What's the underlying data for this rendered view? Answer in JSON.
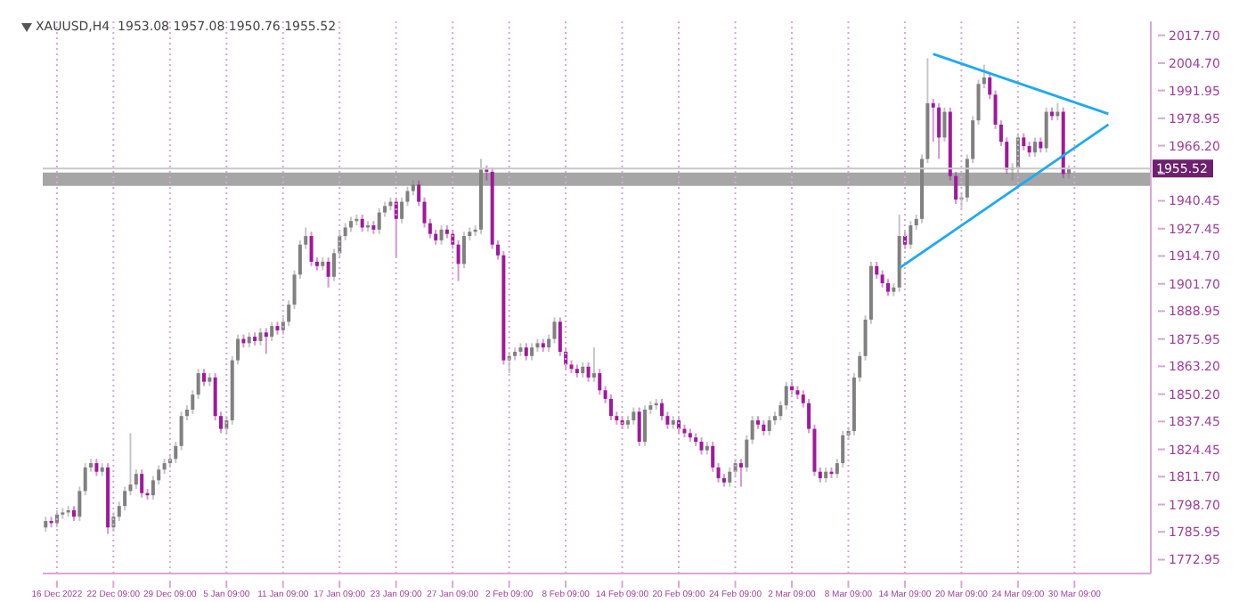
{
  "chart_data": {
    "type": "candlestick",
    "title": "XAUUSD,H4  1953.08 1957.08 1950.76 1955.52",
    "categories": [
      null,
      null,
      "16 Dec 2022",
      null,
      null,
      null,
      null,
      null,
      null,
      null,
      null,
      null,
      "22 Dec 09:00",
      null,
      null,
      null,
      null,
      null,
      null,
      null,
      null,
      null,
      "29 Dec 09:00",
      null,
      null,
      null,
      null,
      null,
      null,
      null,
      null,
      null,
      "5 Jan 09:00",
      null,
      null,
      null,
      null,
      null,
      null,
      null,
      null,
      null,
      "11 Jan 09:00",
      null,
      null,
      null,
      null,
      null,
      null,
      null,
      null,
      null,
      "17 Jan 09:00",
      null,
      null,
      null,
      null,
      null,
      null,
      null,
      null,
      null,
      "23 Jan 09:00",
      null,
      null,
      null,
      null,
      null,
      null,
      null,
      null,
      null,
      "27 Jan 09:00",
      null,
      null,
      null,
      null,
      null,
      null,
      null,
      null,
      null,
      "2 Feb 09:00",
      null,
      null,
      null,
      null,
      null,
      null,
      null,
      null,
      null,
      "8 Feb 09:00",
      null,
      null,
      null,
      null,
      null,
      null,
      null,
      null,
      null,
      "14 Feb 09:00",
      null,
      null,
      null,
      null,
      null,
      null,
      null,
      null,
      null,
      "20 Feb 09:00",
      null,
      null,
      null,
      null,
      null,
      null,
      null,
      null,
      null,
      "24 Feb 09:00",
      null,
      null,
      null,
      null,
      null,
      null,
      null,
      null,
      null,
      "2 Mar 09:00",
      null,
      null,
      null,
      null,
      null,
      null,
      null,
      null,
      null,
      "8 Mar 09:00",
      null,
      null,
      null,
      null,
      null,
      null,
      null,
      null,
      null,
      "14 Mar 09:00",
      null,
      null,
      null,
      null,
      null,
      null,
      null,
      null,
      null,
      "20 Mar 09:00",
      null,
      null,
      null,
      null,
      null,
      null,
      null,
      null,
      null,
      "24 Mar 09:00",
      null,
      null,
      null,
      null,
      null,
      null,
      null,
      null,
      null,
      "30 Mar 09:00",
      null,
      null,
      null,
      null,
      null,
      null,
      null,
      null,
      null,
      null,
      null,
      null,
      null
    ],
    "series": [
      {
        "type": "candlestick",
        "ohlc": [
          [
            1788,
            1793,
            1786,
            1791
          ],
          [
            1791,
            1793,
            1788,
            1790
          ],
          [
            1790,
            1796,
            1788,
            1794
          ],
          [
            1794,
            1797,
            1792,
            1795
          ],
          [
            1795,
            1798,
            1793,
            1796
          ],
          [
            1796,
            1798,
            1791,
            1793
          ],
          [
            1793,
            1807,
            1791,
            1805
          ],
          [
            1805,
            1818,
            1803,
            1816
          ],
          [
            1816,
            1820,
            1814,
            1818
          ],
          [
            1818,
            1820,
            1812,
            1814
          ],
          [
            1814,
            1818,
            1812,
            1816
          ],
          [
            1816,
            1818,
            1785,
            1788
          ],
          [
            1788,
            1795,
            1786,
            1793
          ],
          [
            1793,
            1800,
            1791,
            1798
          ],
          [
            1798,
            1807,
            1796,
            1805
          ],
          [
            1805,
            1832,
            1803,
            1808
          ],
          [
            1808,
            1815,
            1806,
            1813
          ],
          [
            1813,
            1815,
            1802,
            1804
          ],
          [
            1804,
            1806,
            1801,
            1803
          ],
          [
            1803,
            1812,
            1801,
            1810
          ],
          [
            1810,
            1817,
            1808,
            1815
          ],
          [
            1815,
            1820,
            1813,
            1818
          ],
          [
            1818,
            1822,
            1816,
            1820
          ],
          [
            1820,
            1828,
            1818,
            1826
          ],
          [
            1826,
            1842,
            1824,
            1840
          ],
          [
            1840,
            1845,
            1838,
            1843
          ],
          [
            1843,
            1852,
            1841,
            1850
          ],
          [
            1850,
            1862,
            1848,
            1860
          ],
          [
            1860,
            1862,
            1854,
            1856
          ],
          [
            1856,
            1860,
            1854,
            1858
          ],
          [
            1858,
            1860,
            1838,
            1840
          ],
          [
            1840,
            1842,
            1832,
            1834
          ],
          [
            1834,
            1840,
            1832,
            1838
          ],
          [
            1838,
            1868,
            1836,
            1866
          ],
          [
            1866,
            1878,
            1864,
            1876
          ],
          [
            1876,
            1878,
            1872,
            1874
          ],
          [
            1874,
            1879,
            1872,
            1877
          ],
          [
            1877,
            1879,
            1873,
            1875
          ],
          [
            1875,
            1881,
            1873,
            1879
          ],
          [
            1879,
            1881,
            1869,
            1877
          ],
          [
            1877,
            1884,
            1875,
            1882
          ],
          [
            1882,
            1884,
            1878,
            1880
          ],
          [
            1880,
            1886,
            1878,
            1884
          ],
          [
            1884,
            1894,
            1882,
            1892
          ],
          [
            1892,
            1908,
            1890,
            1906
          ],
          [
            1906,
            1922,
            1904,
            1920
          ],
          [
            1920,
            1928,
            1918,
            1924
          ],
          [
            1924,
            1926,
            1910,
            1912
          ],
          [
            1912,
            1914,
            1908,
            1910
          ],
          [
            1910,
            1914,
            1908,
            1912
          ],
          [
            1912,
            1914,
            1900,
            1905
          ],
          [
            1905,
            1918,
            1903,
            1916
          ],
          [
            1916,
            1926,
            1914,
            1924
          ],
          [
            1924,
            1930,
            1922,
            1928
          ],
          [
            1928,
            1933,
            1926,
            1931
          ],
          [
            1931,
            1934,
            1929,
            1932
          ],
          [
            1932,
            1934,
            1926,
            1928
          ],
          [
            1928,
            1931,
            1926,
            1929
          ],
          [
            1929,
            1931,
            1925,
            1927
          ],
          [
            1927,
            1937,
            1925,
            1935
          ],
          [
            1935,
            1940,
            1933,
            1938
          ],
          [
            1938,
            1942,
            1936,
            1940
          ],
          [
            1940,
            1942,
            1914,
            1932
          ],
          [
            1932,
            1942,
            1930,
            1940
          ],
          [
            1940,
            1947,
            1938,
            1945
          ],
          [
            1945,
            1950,
            1943,
            1948
          ],
          [
            1948,
            1950,
            1938,
            1940
          ],
          [
            1940,
            1942,
            1928,
            1930
          ],
          [
            1930,
            1932,
            1923,
            1925
          ],
          [
            1925,
            1927,
            1920,
            1922
          ],
          [
            1922,
            1929,
            1920,
            1927
          ],
          [
            1927,
            1929,
            1923,
            1925
          ],
          [
            1925,
            1927,
            1918,
            1920
          ],
          [
            1920,
            1922,
            1903,
            1911
          ],
          [
            1911,
            1926,
            1909,
            1924
          ],
          [
            1924,
            1928,
            1922,
            1926
          ],
          [
            1926,
            1929,
            1924,
            1927
          ],
          [
            1927,
            1960,
            1925,
            1955
          ],
          [
            1955,
            1957,
            1950,
            1954
          ],
          [
            1954,
            1956,
            1918,
            1920
          ],
          [
            1920,
            1922,
            1913,
            1915
          ],
          [
            1915,
            1917,
            1864,
            1866
          ],
          [
            1866,
            1870,
            1860,
            1868
          ],
          [
            1868,
            1872,
            1866,
            1870
          ],
          [
            1870,
            1874,
            1868,
            1872
          ],
          [
            1872,
            1874,
            1866,
            1868
          ],
          [
            1868,
            1874,
            1866,
            1872
          ],
          [
            1872,
            1876,
            1870,
            1874
          ],
          [
            1874,
            1876,
            1870,
            1872
          ],
          [
            1872,
            1878,
            1870,
            1876
          ],
          [
            1876,
            1886,
            1874,
            1884
          ],
          [
            1884,
            1886,
            1868,
            1870
          ],
          [
            1870,
            1872,
            1862,
            1864
          ],
          [
            1864,
            1866,
            1860,
            1862
          ],
          [
            1862,
            1864,
            1858,
            1860
          ],
          [
            1860,
            1865,
            1858,
            1863
          ],
          [
            1863,
            1865,
            1856,
            1858
          ],
          [
            1858,
            1872,
            1856,
            1860
          ],
          [
            1860,
            1862,
            1850,
            1852
          ],
          [
            1852,
            1854,
            1846,
            1848
          ],
          [
            1848,
            1850,
            1838,
            1840
          ],
          [
            1840,
            1842,
            1836,
            1838
          ],
          [
            1838,
            1840,
            1834,
            1836
          ],
          [
            1836,
            1840,
            1834,
            1838
          ],
          [
            1838,
            1844,
            1836,
            1842
          ],
          [
            1842,
            1844,
            1826,
            1828
          ],
          [
            1828,
            1845,
            1826,
            1843
          ],
          [
            1843,
            1847,
            1841,
            1845
          ],
          [
            1845,
            1848,
            1843,
            1846
          ],
          [
            1846,
            1848,
            1838,
            1840
          ],
          [
            1840,
            1842,
            1834,
            1836
          ],
          [
            1836,
            1840,
            1834,
            1838
          ],
          [
            1838,
            1840,
            1832,
            1834
          ],
          [
            1834,
            1836,
            1830,
            1832
          ],
          [
            1832,
            1834,
            1828,
            1830
          ],
          [
            1830,
            1832,
            1826,
            1828
          ],
          [
            1828,
            1830,
            1822,
            1824
          ],
          [
            1824,
            1828,
            1822,
            1826
          ],
          [
            1826,
            1828,
            1814,
            1816
          ],
          [
            1816,
            1818,
            1809,
            1811
          ],
          [
            1811,
            1813,
            1807,
            1809
          ],
          [
            1809,
            1816,
            1807,
            1814
          ],
          [
            1814,
            1820,
            1812,
            1818
          ],
          [
            1818,
            1820,
            1807,
            1816
          ],
          [
            1816,
            1831,
            1814,
            1829
          ],
          [
            1829,
            1840,
            1827,
            1838
          ],
          [
            1838,
            1840,
            1834,
            1836
          ],
          [
            1836,
            1838,
            1831,
            1833
          ],
          [
            1833,
            1840,
            1831,
            1838
          ],
          [
            1838,
            1842,
            1836,
            1840
          ],
          [
            1840,
            1847,
            1838,
            1845
          ],
          [
            1845,
            1856,
            1843,
            1854
          ],
          [
            1854,
            1856,
            1850,
            1852
          ],
          [
            1852,
            1854,
            1848,
            1850
          ],
          [
            1850,
            1852,
            1844,
            1846
          ],
          [
            1846,
            1848,
            1832,
            1834
          ],
          [
            1834,
            1836,
            1812,
            1814
          ],
          [
            1814,
            1816,
            1809,
            1811
          ],
          [
            1811,
            1816,
            1809,
            1814
          ],
          [
            1814,
            1816,
            1811,
            1813
          ],
          [
            1813,
            1820,
            1811,
            1818
          ],
          [
            1818,
            1833,
            1816,
            1831
          ],
          [
            1831,
            1835,
            1829,
            1833
          ],
          [
            1833,
            1860,
            1831,
            1858
          ],
          [
            1858,
            1870,
            1856,
            1868
          ],
          [
            1868,
            1887,
            1866,
            1885
          ],
          [
            1885,
            1912,
            1883,
            1910
          ],
          [
            1910,
            1912,
            1904,
            1906
          ],
          [
            1906,
            1908,
            1900,
            1902
          ],
          [
            1902,
            1904,
            1896,
            1898
          ],
          [
            1898,
            1902,
            1896,
            1900
          ],
          [
            1900,
            1934,
            1898,
            1924
          ],
          [
            1924,
            1926,
            1918,
            1920
          ],
          [
            1920,
            1931,
            1918,
            1929
          ],
          [
            1929,
            1934,
            1927,
            1932
          ],
          [
            1932,
            1962,
            1930,
            1960
          ],
          [
            1960,
            2007,
            1958,
            1986
          ],
          [
            1986,
            1988,
            1968,
            1984
          ],
          [
            1984,
            1986,
            1960,
            1970
          ],
          [
            1970,
            1984,
            1968,
            1982
          ],
          [
            1982,
            1984,
            1950,
            1952
          ],
          [
            1952,
            1954,
            1939,
            1941
          ],
          [
            1941,
            1944,
            1937,
            1942
          ],
          [
            1942,
            1962,
            1940,
            1960
          ],
          [
            1960,
            1980,
            1958,
            1978
          ],
          [
            1978,
            1997,
            1976,
            1995
          ],
          [
            1995,
            2004,
            1993,
            1998
          ],
          [
            1998,
            2000,
            1988,
            1990
          ],
          [
            1990,
            1992,
            1974,
            1976
          ],
          [
            1976,
            1978,
            1966,
            1968
          ],
          [
            1968,
            1970,
            1953,
            1955
          ],
          [
            1955,
            1958,
            1950,
            1956
          ],
          [
            1956,
            1972,
            1954,
            1970
          ],
          [
            1970,
            1972,
            1964,
            1966
          ],
          [
            1966,
            1968,
            1961,
            1963
          ],
          [
            1963,
            1970,
            1961,
            1968
          ],
          [
            1968,
            1970,
            1963,
            1965
          ],
          [
            1965,
            1984,
            1963,
            1982
          ],
          [
            1982,
            1984,
            1978,
            1980
          ],
          [
            1980,
            1986,
            1978,
            1982
          ],
          [
            1982,
            1984,
            1951,
            1953
          ],
          [
            1953.08,
            1957.08,
            1950.76,
            1955.52
          ],
          null,
          null,
          null,
          null,
          null,
          null,
          null,
          null,
          null,
          null,
          null,
          null,
          null,
          null
        ],
        "colors": [
          "#808080",
          "#a0189c",
          "#808080",
          "#808080",
          "#808080",
          "#a0189c",
          "#808080",
          "#808080",
          "#808080",
          "#a0189c",
          "#808080",
          "#a0189c",
          "#808080",
          "#808080",
          "#808080",
          "#808080",
          "#808080",
          "#a0189c",
          "#a0189c",
          "#808080",
          "#808080",
          "#808080",
          "#808080",
          "#808080",
          "#808080",
          "#808080",
          "#808080",
          "#808080",
          "#a0189c",
          "#808080",
          "#a0189c",
          "#a0189c",
          "#808080",
          "#808080",
          "#808080",
          "#a0189c",
          "#808080",
          "#a0189c",
          "#808080",
          "#a0189c",
          "#808080",
          "#a0189c",
          "#808080",
          "#808080",
          "#808080",
          "#808080",
          "#808080",
          "#a0189c",
          "#a0189c",
          "#808080",
          "#a0189c",
          "#808080",
          "#808080",
          "#808080",
          "#808080",
          "#808080",
          "#a0189c",
          "#808080",
          "#a0189c",
          "#808080",
          "#808080",
          "#808080",
          "#a0189c",
          "#808080",
          "#808080",
          "#808080",
          "#a0189c",
          "#a0189c",
          "#a0189c",
          "#a0189c",
          "#808080",
          "#a0189c",
          "#a0189c",
          "#a0189c",
          "#808080",
          "#808080",
          "#808080",
          "#808080",
          "#a0189c",
          "#a0189c",
          "#a0189c",
          "#a0189c",
          "#808080",
          "#808080",
          "#808080",
          "#a0189c",
          "#808080",
          "#808080",
          "#a0189c",
          "#808080",
          "#808080",
          "#a0189c",
          "#a0189c",
          "#a0189c",
          "#a0189c",
          "#808080",
          "#a0189c",
          "#808080",
          "#a0189c",
          "#a0189c",
          "#a0189c",
          "#a0189c",
          "#a0189c",
          "#808080",
          "#808080",
          "#a0189c",
          "#808080",
          "#808080",
          "#808080",
          "#a0189c",
          "#a0189c",
          "#808080",
          "#a0189c",
          "#a0189c",
          "#a0189c",
          "#a0189c",
          "#a0189c",
          "#808080",
          "#a0189c",
          "#a0189c",
          "#a0189c",
          "#808080",
          "#808080",
          "#a0189c",
          "#808080",
          "#808080",
          "#a0189c",
          "#a0189c",
          "#808080",
          "#808080",
          "#808080",
          "#808080",
          "#a0189c",
          "#a0189c",
          "#a0189c",
          "#a0189c",
          "#a0189c",
          "#a0189c",
          "#808080",
          "#a0189c",
          "#808080",
          "#808080",
          "#808080",
          "#808080",
          "#808080",
          "#808080",
          "#808080",
          "#a0189c",
          "#a0189c",
          "#a0189c",
          "#808080",
          "#808080",
          "#a0189c",
          "#808080",
          "#808080",
          "#808080",
          "#808080",
          "#a0189c",
          "#a0189c",
          "#808080",
          "#a0189c",
          "#a0189c",
          "#808080",
          "#808080",
          "#808080",
          "#808080",
          "#808080",
          "#a0189c",
          "#a0189c",
          "#a0189c",
          "#a0189c",
          "#808080",
          "#808080",
          "#a0189c",
          "#a0189c",
          "#808080",
          "#a0189c",
          "#808080",
          "#a0189c",
          "#808080",
          "#a0189c",
          "#808080",
          null,
          null,
          null,
          null,
          null,
          null,
          null,
          null,
          null,
          null,
          null,
          null,
          null,
          null
        ]
      },
      {
        "type": "line",
        "color": "#1eaaf0",
        "values": [
          null,
          null,
          null,
          null,
          null,
          null,
          null,
          null,
          null,
          null,
          null,
          null,
          null,
          null,
          null,
          null,
          null,
          null,
          null,
          null,
          null,
          null,
          null,
          null,
          null,
          null,
          null,
          null,
          null,
          null,
          null,
          null,
          null,
          null,
          null,
          null,
          null,
          null,
          null,
          null,
          null,
          null,
          null,
          null,
          null,
          null,
          null,
          null,
          null,
          null,
          null,
          null,
          null,
          null,
          null,
          null,
          null,
          null,
          null,
          null,
          null,
          null,
          null,
          null,
          null,
          null,
          null,
          null,
          null,
          null,
          null,
          null,
          null,
          null,
          null,
          null,
          null,
          null,
          null,
          null,
          null,
          null,
          null,
          null,
          null,
          null,
          null,
          null,
          null,
          null,
          null,
          null,
          null,
          null,
          null,
          null,
          null,
          null,
          null,
          null,
          null,
          null,
          null,
          null,
          null,
          null,
          null,
          null,
          null,
          null,
          null,
          null,
          null,
          null,
          null,
          null,
          null,
          null,
          null,
          null,
          null,
          null,
          null,
          null,
          null,
          null,
          null,
          null,
          null,
          null,
          null,
          null,
          null,
          null,
          null,
          null,
          null,
          null,
          null,
          null,
          null,
          null,
          null,
          null,
          null,
          null,
          null,
          null,
          null,
          null,
          null,
          null,
          null,
          null,
          null,
          null,
          null,
          2009,
          null,
          null,
          null,
          null,
          null,
          null,
          null,
          null,
          null,
          null,
          null,
          null,
          null,
          null,
          null,
          null,
          null,
          null,
          null,
          null,
          null,
          null,
          null,
          null,
          null,
          null,
          null,
          null,
          null,
          null,
          1981,
          null,
          null,
          null,
          null,
          null,
          null,
          null
        ]
      },
      {
        "type": "line",
        "color": "#1eaaf0",
        "values": [
          null,
          null,
          null,
          null,
          null,
          null,
          null,
          null,
          null,
          null,
          null,
          null,
          null,
          null,
          null,
          null,
          null,
          null,
          null,
          null,
          null,
          null,
          null,
          null,
          null,
          null,
          null,
          null,
          null,
          null,
          null,
          null,
          null,
          null,
          null,
          null,
          null,
          null,
          null,
          null,
          null,
          null,
          null,
          null,
          null,
          null,
          null,
          null,
          null,
          null,
          null,
          null,
          null,
          null,
          null,
          null,
          null,
          null,
          null,
          null,
          null,
          null,
          null,
          null,
          null,
          null,
          null,
          null,
          null,
          null,
          null,
          null,
          null,
          null,
          null,
          null,
          null,
          null,
          null,
          null,
          null,
          null,
          null,
          null,
          null,
          null,
          null,
          null,
          null,
          null,
          null,
          null,
          null,
          null,
          null,
          null,
          null,
          null,
          null,
          null,
          null,
          null,
          null,
          null,
          null,
          null,
          null,
          null,
          null,
          null,
          null,
          null,
          null,
          null,
          null,
          null,
          null,
          null,
          null,
          null,
          null,
          null,
          null,
          null,
          null,
          null,
          null,
          null,
          null,
          null,
          null,
          null,
          null,
          null,
          null,
          null,
          null,
          null,
          null,
          null,
          null,
          null,
          null,
          null,
          null,
          null,
          null,
          null,
          null,
          null,
          null,
          1909,
          null,
          null,
          null,
          null,
          null,
          null,
          null,
          null,
          null,
          null,
          null,
          null,
          null,
          null,
          null,
          null,
          null,
          null,
          null,
          null,
          null,
          null,
          null,
          null,
          null,
          null,
          null,
          null,
          null,
          null,
          null,
          null,
          null,
          null,
          null,
          null,
          1976,
          null,
          null,
          null,
          null,
          null,
          null,
          null
        ]
      }
    ],
    "ylim": [
      1766.5,
      2024.2
    ],
    "yticks": [
      {
        "value": 1772.95,
        "label": "1772.95"
      },
      {
        "value": 1785.95,
        "label": "1785.95"
      },
      {
        "value": 1798.7,
        "label": "1798.70"
      },
      {
        "value": 1811.7,
        "label": "1811.70"
      },
      {
        "value": 1824.45,
        "label": "1824.45"
      },
      {
        "value": 1837.45,
        "label": "1837.45"
      },
      {
        "value": 1850.2,
        "label": "1850.20"
      },
      {
        "value": 1863.2,
        "label": "1863.20"
      },
      {
        "value": 1875.95,
        "label": "1875.95"
      },
      {
        "value": 1888.95,
        "label": "1888.95"
      },
      {
        "value": 1901.7,
        "label": "1901.70"
      },
      {
        "value": 1914.7,
        "label": "1914.70"
      },
      {
        "value": 1927.45,
        "label": "1927.45"
      },
      {
        "value": 1940.45,
        "label": "1940.45"
      },
      {
        "value": 1953.2,
        "label": null
      },
      {
        "value": 1966.2,
        "label": "1966.20"
      },
      {
        "value": 1978.95,
        "label": "1978.95"
      },
      {
        "value": 1991.95,
        "label": "1991.95"
      },
      {
        "value": 2004.7,
        "label": "2004.70"
      },
      {
        "value": 2017.7,
        "label": "2017.70"
      }
    ],
    "ref_lines": [
      {
        "axis": "y",
        "value": 1955.52,
        "label": "1955.52",
        "color": "#c8c8c8"
      }
    ],
    "bands": [
      {
        "axis": "y",
        "from": 1947.4,
        "to": 1953.6,
        "color": "#a6a6a6"
      }
    ],
    "grid": "x"
  }
}
